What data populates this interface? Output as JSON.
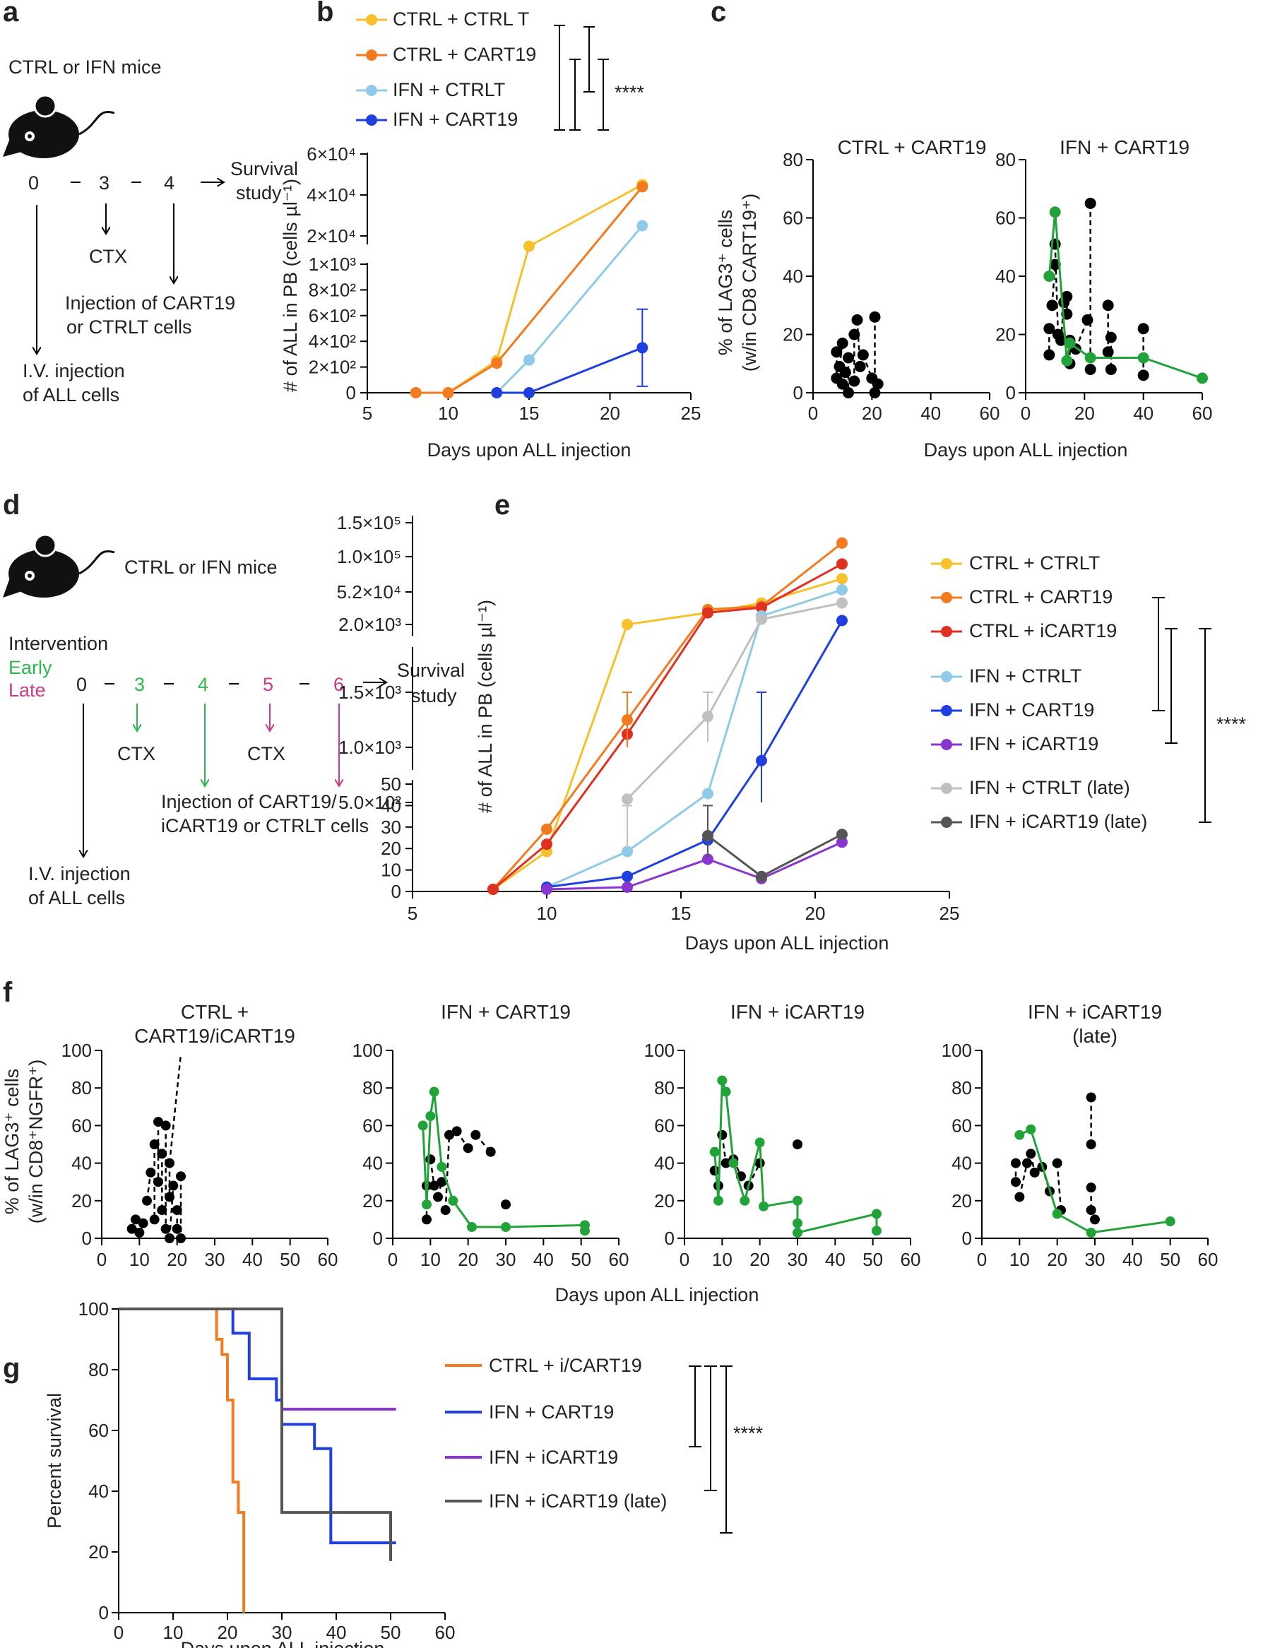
{
  "panel_labels": [
    "a",
    "b",
    "c",
    "d",
    "e",
    "f",
    "g"
  ],
  "panel_a": {
    "title": "CTRL or IFN mice",
    "timeline": [
      "0",
      "3",
      "4"
    ],
    "survival": [
      "Survival",
      "study"
    ],
    "ctx": "CTX",
    "injection_cart": [
      "Injection of CART19",
      "or CTRLT cells"
    ],
    "injection_all": [
      "I.V. injection",
      "of ALL cells"
    ]
  },
  "panel_d": {
    "title": "CTRL or IFN mice",
    "intervention": "Intervention",
    "early": "Early",
    "late": "Late",
    "timeline": [
      "0",
      "3",
      "4",
      "5",
      "6"
    ],
    "survival": [
      "Survival",
      "study"
    ],
    "ctx": "CTX",
    "injection_cart": [
      "Injection of CART19/",
      "iCART19 or CTRLT cells"
    ],
    "injection_all": [
      "I.V. injection",
      "of ALL cells"
    ],
    "colors": {
      "early": "#2db84d",
      "late": "#cc3a8a"
    }
  },
  "significance": "****",
  "chart_data": [
    {
      "id": "b",
      "type": "line",
      "xlabel": "Days upon ALL injection",
      "ylabel": "# of ALL in PB (cells µl⁻¹)",
      "xlim": [
        5,
        25
      ],
      "xticks": [
        "5",
        "10",
        "15",
        "20",
        "25"
      ],
      "y_segments": [
        {
          "range": [
            0,
            1000
          ],
          "ticks": [
            "0",
            "2×10²",
            "4×10²",
            "6×10²",
            "8×10²",
            "1×10³"
          ]
        },
        {
          "range": [
            0,
            60000
          ],
          "ticks": [
            "2×10⁴",
            "4×10⁴",
            "6×10⁴"
          ]
        }
      ],
      "series": [
        {
          "name": "CTRL + CTRL T",
          "color": "#f6c12a",
          "x": [
            8,
            10,
            13,
            15,
            22
          ],
          "y": [
            0,
            0,
            250,
            15000,
            45000
          ]
        },
        {
          "name": "CTRL + CART19",
          "color": "#f47a20",
          "x": [
            8,
            10,
            13,
            22
          ],
          "y": [
            0,
            0,
            230,
            44000
          ]
        },
        {
          "name": "IFN + CTRLT",
          "color": "#8fcbe8",
          "x": [
            13,
            15,
            22
          ],
          "y": [
            0,
            255,
            25000
          ]
        },
        {
          "name": "IFN + CART19",
          "color": "#1f3fe0",
          "x": [
            13,
            15,
            22
          ],
          "y": [
            0,
            0,
            350
          ]
        }
      ]
    },
    {
      "id": "c",
      "type": "scatter",
      "ylabel": "% of LAG3⁺ cells (w/in CD8 CART19⁺)",
      "xlabel": "Days upon ALL injection",
      "ylim": [
        0,
        80
      ],
      "xlim": [
        0,
        60
      ],
      "yticks": [
        "0",
        "20",
        "40",
        "60",
        "80"
      ],
      "xticks": [
        "0",
        "20",
        "40",
        "60"
      ],
      "subplots": [
        {
          "title": "CTRL + CART19",
          "points": [
            [
              8,
              14
            ],
            [
              8,
              5
            ],
            [
              9,
              9
            ],
            [
              10,
              17
            ],
            [
              10,
              3
            ],
            [
              11,
              7
            ],
            [
              12,
              12
            ],
            [
              12,
              0
            ],
            [
              14,
              20
            ],
            [
              14,
              4
            ],
            [
              15,
              25
            ],
            [
              16,
              9
            ],
            [
              17,
              13
            ],
            [
              20,
              5
            ],
            [
              21,
              26
            ],
            [
              21,
              0
            ],
            [
              22,
              3
            ]
          ]
        },
        {
          "title": "IFN + CART19",
          "green": [
            [
              8,
              40
            ],
            [
              10,
              62
            ],
            [
              14,
              11
            ],
            [
              15,
              17
            ],
            [
              22,
              12
            ],
            [
              40,
              12
            ],
            [
              60,
              5
            ]
          ],
          "points": [
            [
              8,
              22
            ],
            [
              8,
              13
            ],
            [
              9,
              30
            ],
            [
              10,
              44
            ],
            [
              10,
              51
            ],
            [
              11,
              20
            ],
            [
              12,
              18
            ],
            [
              13,
              31
            ],
            [
              14,
              33
            ],
            [
              14,
              27
            ],
            [
              15,
              10
            ],
            [
              15,
              18
            ],
            [
              17,
              15
            ],
            [
              21,
              25
            ],
            [
              22,
              65
            ],
            [
              22,
              8
            ],
            [
              28,
              30
            ],
            [
              28,
              14
            ],
            [
              29,
              19
            ],
            [
              29,
              8
            ],
            [
              40,
              22
            ],
            [
              40,
              6
            ]
          ]
        }
      ]
    },
    {
      "id": "e",
      "type": "line",
      "xlabel": "Days upon ALL injection",
      "ylabel": "# of ALL in PB (cells µl⁻¹)",
      "xlim": [
        5,
        25
      ],
      "xticks": [
        "5",
        "10",
        "15",
        "20",
        "25"
      ],
      "y_segments": [
        {
          "range": [
            0,
            50
          ],
          "ticks": [
            "0",
            "10",
            "20",
            "30",
            "40",
            "50"
          ]
        },
        {
          "ticks": [
            "5.0×10²",
            "1.0×10³",
            "1.5×10³"
          ]
        },
        {
          "ticks": [
            "2.0×10³",
            "5.2×10⁴",
            "1.0×10⁵",
            "1.5×10⁵"
          ]
        }
      ],
      "series": [
        {
          "name": "CTRL + CTRLT",
          "color": "#f6c12a",
          "x": [
            8,
            10,
            13,
            16,
            18,
            21
          ],
          "y": [
            1,
            55,
            2000,
            20000,
            35000,
            70000
          ]
        },
        {
          "name": "CTRL + CART19",
          "color": "#f47a20",
          "x": [
            8,
            10,
            13,
            16,
            18,
            21
          ],
          "y": [
            1,
            29,
            1250,
            25000,
            30000,
            120000
          ]
        },
        {
          "name": "CTRL + iCART19",
          "color": "#e03020",
          "x": [
            8,
            10,
            13,
            16,
            18,
            21
          ],
          "y": [
            1,
            22,
            1120,
            20000,
            28000,
            90000
          ]
        },
        {
          "name": "IFN + CTRLT",
          "color": "#8fcbe8",
          "x": [
            10,
            13,
            16,
            18,
            21
          ],
          "y": [
            2,
            55,
            580,
            15000,
            55000
          ]
        },
        {
          "name": "IFN + CART19",
          "color": "#1f3fe0",
          "x": [
            10,
            13,
            16,
            18,
            21
          ],
          "y": [
            2,
            7,
            160,
            880,
            8000
          ]
        },
        {
          "name": "IFN + iCART19",
          "color": "#8a35d0",
          "x": [
            10,
            13,
            16,
            18,
            21
          ],
          "y": [
            1,
            2,
            15,
            6,
            140
          ]
        },
        {
          "name": "IFN + CTRLT (late)",
          "color": "#c0c0c0",
          "x": [
            13,
            16,
            18,
            21
          ],
          "y": [
            43,
            1280,
            10000,
            35000
          ]
        },
        {
          "name": "IFN + iCART19 (late)",
          "color": "#555555",
          "x": [
            16,
            18,
            21
          ],
          "y": [
            26,
            7,
            210
          ]
        }
      ]
    },
    {
      "id": "f",
      "type": "scatter",
      "ylabel": "% of LAG3⁺ cells (w/in CD8⁺NGFR⁺)",
      "xlabel": "Days upon ALL injection",
      "ylim": [
        0,
        100
      ],
      "xlim": [
        0,
        60
      ],
      "yticks": [
        "0",
        "20",
        "40",
        "60",
        "80",
        "100"
      ],
      "xticks": [
        "0",
        "10",
        "20",
        "30",
        "40",
        "50",
        "60"
      ],
      "subplots": [
        {
          "title": [
            "CTRL +",
            "CART19/iCART19"
          ],
          "points": [
            [
              8,
              5
            ],
            [
              9,
              10
            ],
            [
              10,
              3
            ],
            [
              11,
              8
            ],
            [
              12,
              20
            ],
            [
              13,
              35
            ],
            [
              14,
              50
            ],
            [
              14,
              10
            ],
            [
              15,
              62
            ],
            [
              15,
              30
            ],
            [
              16,
              45
            ],
            [
              16,
              15
            ],
            [
              17,
              60
            ],
            [
              17,
              5
            ],
            [
              18,
              40
            ],
            [
              18,
              22
            ],
            [
              18,
              0
            ],
            [
              19,
              28
            ],
            [
              20,
              15
            ],
            [
              20,
              5
            ],
            [
              21,
              33
            ],
            [
              21,
              0
            ]
          ]
        },
        {
          "title": [
            "IFN + CART19"
          ],
          "green": [
            [
              8,
              60
            ],
            [
              9,
              18
            ],
            [
              10,
              65
            ],
            [
              11,
              78
            ],
            [
              13,
              38
            ],
            [
              16,
              20
            ],
            [
              21,
              6
            ],
            [
              30,
              6
            ],
            [
              51,
              7
            ],
            [
              51,
              4
            ]
          ],
          "points": [
            [
              9,
              28
            ],
            [
              9,
              10
            ],
            [
              10,
              42
            ],
            [
              11,
              28
            ],
            [
              12,
              22
            ],
            [
              13,
              30
            ],
            [
              14,
              15
            ],
            [
              15,
              55
            ],
            [
              17,
              57
            ],
            [
              20,
              48
            ],
            [
              22,
              55
            ],
            [
              26,
              46
            ],
            [
              30,
              18
            ]
          ]
        },
        {
          "title": [
            "IFN + iCART19"
          ],
          "green": [
            [
              8,
              46
            ],
            [
              9,
              20
            ],
            [
              10,
              84
            ],
            [
              11,
              78
            ],
            [
              13,
              40
            ],
            [
              16,
              20
            ],
            [
              20,
              51
            ],
            [
              21,
              17
            ],
            [
              30,
              20
            ],
            [
              30,
              8
            ],
            [
              30,
              3
            ],
            [
              51,
              13
            ],
            [
              51,
              4
            ]
          ],
          "points": [
            [
              8,
              36
            ],
            [
              9,
              28
            ],
            [
              10,
              55
            ],
            [
              11,
              40
            ],
            [
              13,
              42
            ],
            [
              15,
              33
            ],
            [
              17,
              28
            ],
            [
              20,
              40
            ],
            [
              30,
              50
            ]
          ]
        },
        {
          "title": [
            "IFN + iCART19",
            "(late)"
          ],
          "green": [
            [
              10,
              55
            ],
            [
              13,
              58
            ],
            [
              20,
              13
            ],
            [
              29,
              3
            ],
            [
              50,
              9
            ]
          ],
          "points": [
            [
              9,
              40
            ],
            [
              9,
              30
            ],
            [
              10,
              22
            ],
            [
              12,
              40
            ],
            [
              13,
              45
            ],
            [
              14,
              35
            ],
            [
              16,
              38
            ],
            [
              18,
              25
            ],
            [
              20,
              40
            ],
            [
              21,
              15
            ],
            [
              29,
              75
            ],
            [
              29,
              50
            ],
            [
              29,
              27
            ],
            [
              29,
              15
            ],
            [
              30,
              10
            ]
          ]
        }
      ]
    },
    {
      "id": "g",
      "type": "line",
      "xlabel": "Days upon ALL injection",
      "ylabel": "Percent survival",
      "xlim": [
        0,
        60
      ],
      "ylim": [
        0,
        100
      ],
      "xticks": [
        "0",
        "10",
        "20",
        "30",
        "40",
        "50",
        "60"
      ],
      "yticks": [
        "0",
        "20",
        "40",
        "60",
        "80",
        "100"
      ],
      "series": [
        {
          "name": "CTRL + i/CART19",
          "color": "#f47a20",
          "x": [
            0,
            18,
            18,
            19,
            19,
            20,
            20,
            21,
            21,
            22,
            22,
            23,
            23
          ],
          "y": [
            100,
            100,
            90,
            90,
            85,
            85,
            70,
            70,
            43,
            43,
            33,
            33,
            0
          ]
        },
        {
          "name": "IFN + CART19",
          "color": "#1f3fe0",
          "x": [
            0,
            21,
            21,
            24,
            24,
            29,
            29,
            30,
            30,
            36,
            36,
            39,
            39,
            51
          ],
          "y": [
            100,
            100,
            92,
            92,
            77,
            77,
            70,
            70,
            62,
            62,
            54,
            54,
            23,
            23
          ]
        },
        {
          "name": "IFN + iCART19",
          "color": "#8a35d0",
          "x": [
            0,
            30,
            30,
            51
          ],
          "y": [
            100,
            100,
            67,
            67
          ]
        },
        {
          "name": "IFN + iCART19 (late)",
          "color": "#555555",
          "x": [
            0,
            30,
            30,
            50,
            50
          ],
          "y": [
            100,
            100,
            33,
            33,
            17
          ]
        }
      ]
    }
  ]
}
